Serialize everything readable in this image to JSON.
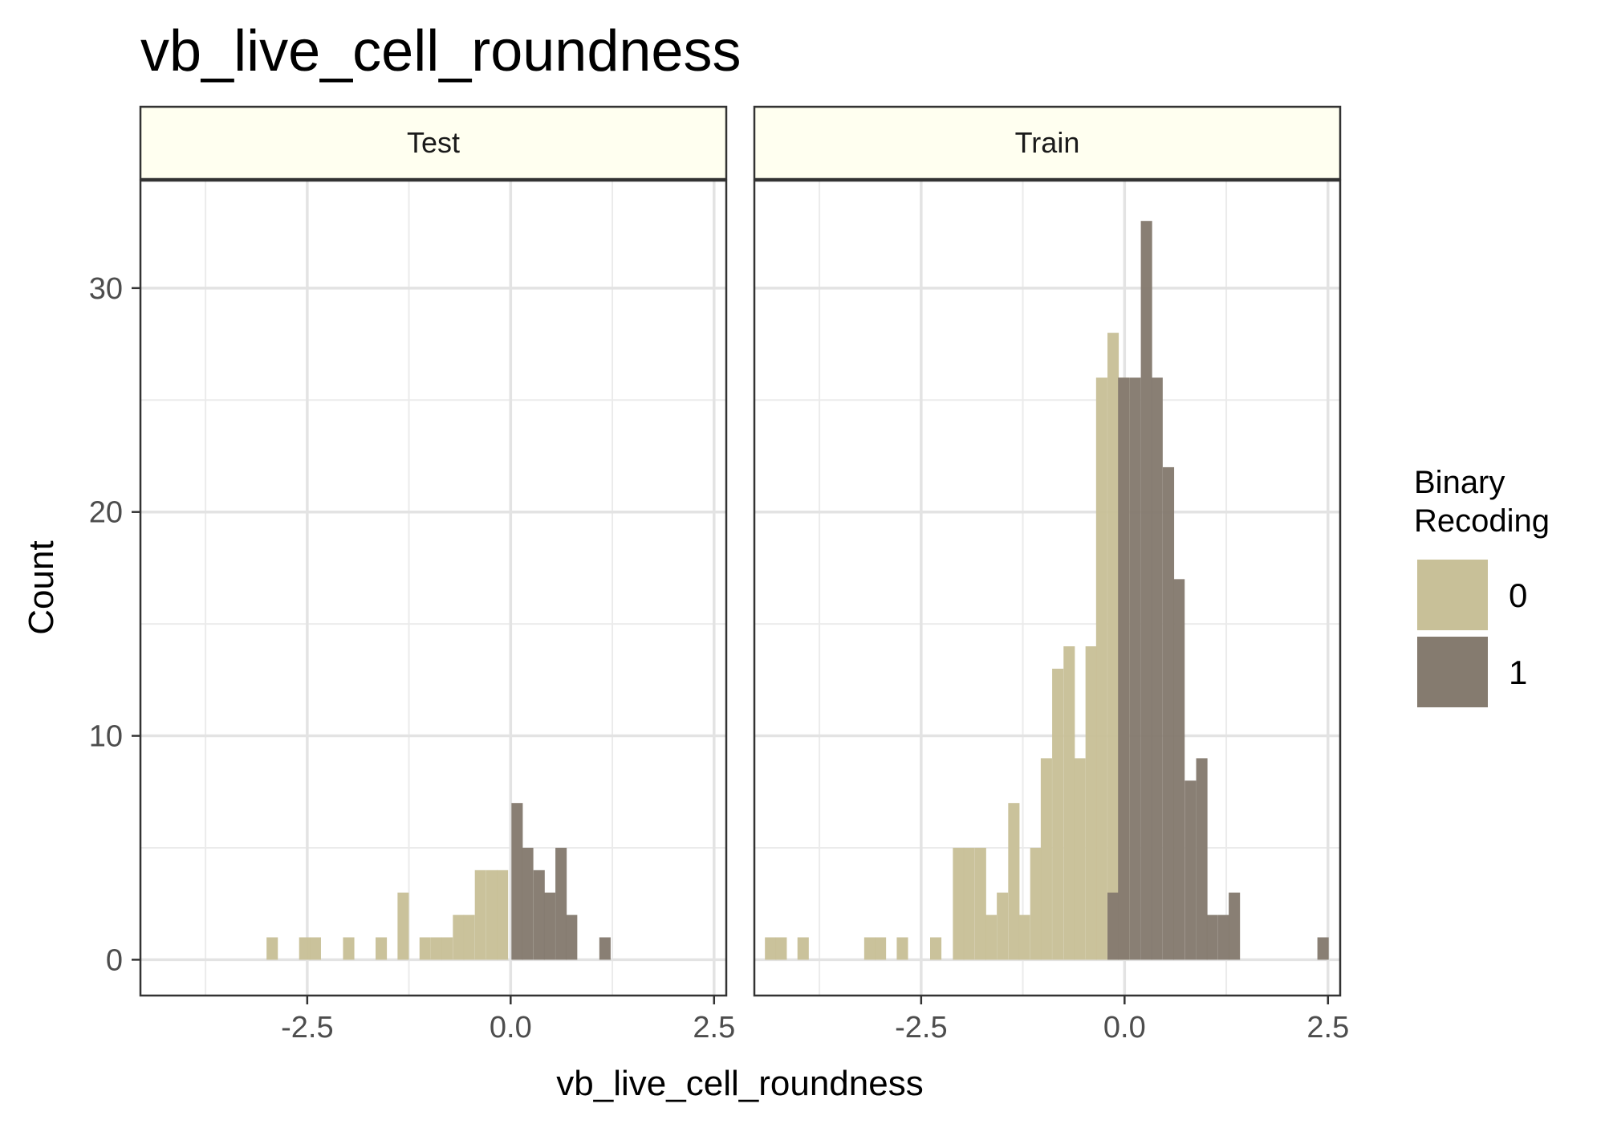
{
  "chart_data": {
    "type": "histogram",
    "title": "vb_live_cell_roundness",
    "xlabel": "vb_live_cell_roundness",
    "ylabel": "Count",
    "xlim": [
      -4.55,
      2.65
    ],
    "ylim": [
      -1.6,
      34.8
    ],
    "x_ticks": [
      -2.5,
      0.0,
      2.5
    ],
    "x_tick_labels": [
      "-2.5",
      "0.0",
      "2.5"
    ],
    "y_ticks": [
      0,
      10,
      20,
      30
    ],
    "y_tick_labels": [
      "0",
      "10",
      "20",
      "30"
    ],
    "x_minor_grid": [
      -3.75,
      -1.25,
      1.25
    ],
    "y_minor_grid": [
      5,
      15,
      25
    ],
    "bin_width": 0.135,
    "legend": {
      "title_lines": [
        "Binary",
        "Recoding"
      ],
      "position": "right",
      "entries": [
        {
          "label": "0",
          "color": "#c8c098"
        },
        {
          "label": "1",
          "color": "#857b6f"
        }
      ]
    },
    "panels": [
      {
        "label": "Test",
        "series": [
          {
            "name": "0",
            "color": "#c8c098",
            "bins": [
              {
                "x": -3.0,
                "count": 1
              },
              {
                "x": -2.6,
                "count": 1
              },
              {
                "x": -2.47,
                "count": 1
              },
              {
                "x": -2.06,
                "count": 1
              },
              {
                "x": -1.66,
                "count": 1
              },
              {
                "x": -1.39,
                "count": 3
              },
              {
                "x": -1.12,
                "count": 1
              },
              {
                "x": -0.98,
                "count": 1
              },
              {
                "x": -0.85,
                "count": 1
              },
              {
                "x": -0.71,
                "count": 2
              },
              {
                "x": -0.58,
                "count": 2
              },
              {
                "x": -0.44,
                "count": 4
              },
              {
                "x": -0.3,
                "count": 4
              },
              {
                "x": -0.17,
                "count": 4
              }
            ]
          },
          {
            "name": "1",
            "color": "#857b6f",
            "bins": [
              {
                "x": 0.01,
                "count": 7
              },
              {
                "x": 0.14,
                "count": 5
              },
              {
                "x": 0.28,
                "count": 4
              },
              {
                "x": 0.41,
                "count": 3
              },
              {
                "x": 0.55,
                "count": 5
              },
              {
                "x": 0.68,
                "count": 2
              },
              {
                "x": 1.09,
                "count": 1
              }
            ]
          }
        ]
      },
      {
        "label": "Train",
        "series": [
          {
            "name": "0",
            "color": "#c8c098",
            "bins": [
              {
                "x": -4.42,
                "count": 1
              },
              {
                "x": -4.29,
                "count": 1
              },
              {
                "x": -4.02,
                "count": 1
              },
              {
                "x": -3.2,
                "count": 1
              },
              {
                "x": -3.07,
                "count": 1
              },
              {
                "x": -2.8,
                "count": 1
              },
              {
                "x": -2.39,
                "count": 1
              },
              {
                "x": -2.11,
                "count": 5
              },
              {
                "x": -1.98,
                "count": 5
              },
              {
                "x": -1.84,
                "count": 5
              },
              {
                "x": -1.71,
                "count": 2
              },
              {
                "x": -1.57,
                "count": 3
              },
              {
                "x": -1.43,
                "count": 7
              },
              {
                "x": -1.3,
                "count": 2
              },
              {
                "x": -1.16,
                "count": 5
              },
              {
                "x": -1.03,
                "count": 9
              },
              {
                "x": -0.89,
                "count": 13
              },
              {
                "x": -0.75,
                "count": 14
              },
              {
                "x": -0.62,
                "count": 9
              },
              {
                "x": -0.48,
                "count": 14
              },
              {
                "x": -0.35,
                "count": 26
              },
              {
                "x": -0.21,
                "count": 28
              },
              {
                "x": -0.08,
                "count": 26
              }
            ]
          },
          {
            "name": "1",
            "color": "#857b6f",
            "bins": [
              {
                "x": -0.21,
                "count": 3
              },
              {
                "x": -0.08,
                "count": 26
              },
              {
                "x": 0.06,
                "count": 26
              },
              {
                "x": 0.2,
                "count": 33
              },
              {
                "x": 0.33,
                "count": 26
              },
              {
                "x": 0.47,
                "count": 22
              },
              {
                "x": 0.6,
                "count": 17
              },
              {
                "x": 0.74,
                "count": 8
              },
              {
                "x": 0.88,
                "count": 9
              },
              {
                "x": 1.01,
                "count": 2
              },
              {
                "x": 1.15,
                "count": 2
              },
              {
                "x": 1.28,
                "count": 3
              },
              {
                "x": 2.37,
                "count": 1
              }
            ]
          }
        ]
      }
    ]
  }
}
